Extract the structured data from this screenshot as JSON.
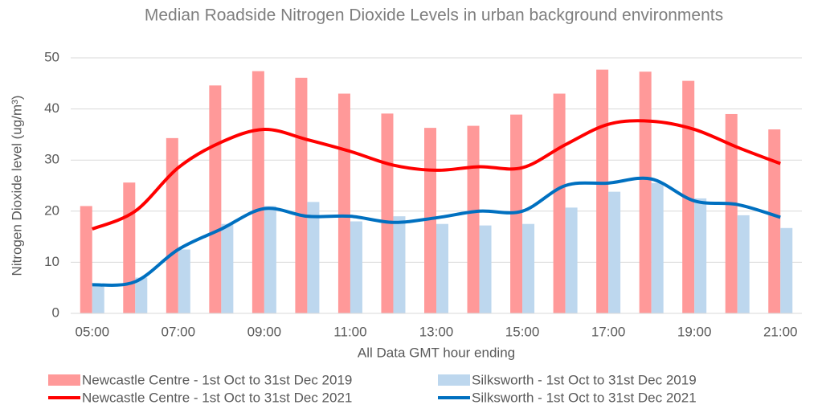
{
  "chart_data": {
    "type": "bar",
    "title": "Median Roadside Nitrogen Dioxide Levels in urban background environments",
    "x_label": "All Data GMT hour ending",
    "y_label": "Nitrogen Dioxide level (ug/m³)",
    "categories": [
      "05:00",
      null,
      "07:00",
      null,
      "09:00",
      null,
      "11:00",
      null,
      "13:00",
      null,
      "15:00",
      null,
      "17:00",
      null,
      "19:00",
      null,
      "21:00"
    ],
    "series": [
      {
        "name": "Newcastle Centre - 1st Oct to 31st Dec 2019",
        "type": "bar",
        "color": "#ff9999",
        "values": [
          21,
          25.6,
          34.3,
          44.6,
          47.4,
          46.1,
          43,
          39.1,
          36.3,
          36.7,
          38.9,
          43,
          47.7,
          47.3,
          45.5,
          39,
          36
        ]
      },
      {
        "name": "Silksworth - 1st Oct to 31st Dec 2019",
        "type": "bar",
        "color": "#bdd7ee",
        "values": [
          5.5,
          7,
          12.5,
          17.5,
          21,
          21.8,
          18,
          19,
          17.5,
          17.2,
          17.5,
          20.7,
          23.8,
          25.5,
          22.5,
          19.2,
          16.7
        ]
      },
      {
        "name": "Newcastle Centre - 1st Oct to 31st Dec 2021",
        "type": "line",
        "color": "#ff0000",
        "values": [
          16.5,
          20,
          28.5,
          33.5,
          36,
          34,
          31.7,
          29,
          28,
          28.7,
          28.5,
          33,
          37,
          37.6,
          36,
          32.5,
          29.3
        ]
      },
      {
        "name": "Silksworth - 1st Oct to 31st Dec 2021",
        "type": "line",
        "color": "#0070c0",
        "values": [
          5.6,
          6.2,
          12.5,
          16.5,
          20.5,
          19,
          19,
          17.8,
          18.7,
          20,
          20,
          25,
          25.5,
          26.3,
          22,
          21.3,
          18.8
        ]
      }
    ],
    "ylim": [
      0,
      50
    ],
    "yticks": [
      0,
      10,
      20,
      30,
      40,
      50
    ],
    "grid": true
  }
}
